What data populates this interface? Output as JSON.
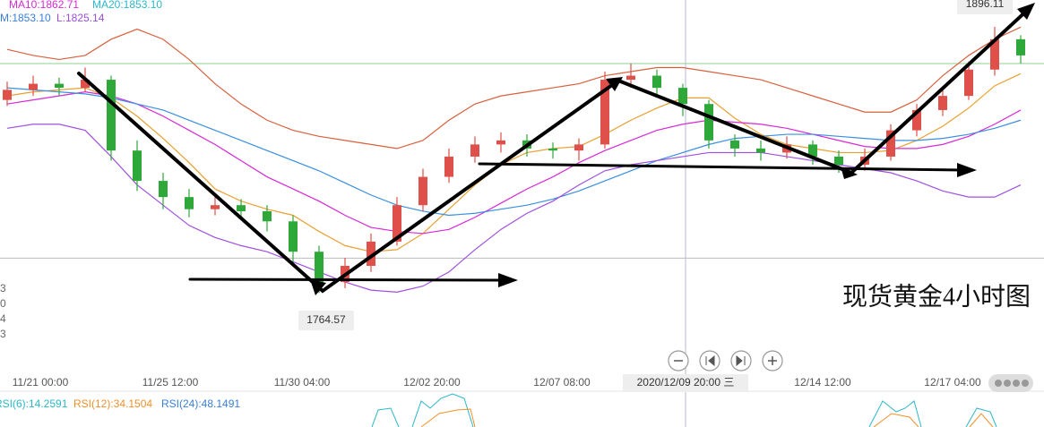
{
  "chart_data": {
    "type": "candlestick",
    "title": "现货黄金4小时图",
    "legend_texts": [
      {
        "text": "MA10:1862.71",
        "color": "#d62ad6"
      },
      {
        "text": "MA20:1853.10",
        "color": "#2ab8c8"
      },
      {
        "text": "M:1853.10",
        "color": "#3a7fd6"
      },
      {
        "text": "L:1825.14",
        "color": "#9a4fd6"
      }
    ],
    "left_fragments": [
      "3",
      "0",
      "4",
      "3"
    ],
    "high_label": "1896.11",
    "low_label": "1764.57",
    "x_labels": [
      "11/21 00:00",
      "11/25 12:00",
      "11/30 04:00",
      "12/02 20:00",
      "12/07 08:00",
      "12/14 12:00",
      "12/17 04:00"
    ],
    "crosshair_label": "2020/12/09 20:00 三",
    "rsi_labels": [
      {
        "text": "RSI(6):14.2591",
        "color": "#2ab8c8"
      },
      {
        "text": "RSI(12):34.1504",
        "color": "#f0902a"
      },
      {
        "text": "RSI(24):48.1491",
        "color": "#3a7fd6"
      }
    ],
    "ylim": [
      1728,
      1909.4
    ],
    "up_color": "#e0504a",
    "down_color": "#2fa83a",
    "hlines": [
      {
        "value": 1878,
        "color": "#8fd08f"
      },
      {
        "value": 1781.8,
        "color": "#bbbbbb"
      }
    ],
    "ohlc": [
      [
        1860,
        1869,
        1857,
        1865
      ],
      [
        1865,
        1872,
        1862,
        1868
      ],
      [
        1868,
        1871,
        1862,
        1866
      ],
      [
        1866,
        1876,
        1864,
        1870
      ],
      [
        1870,
        1872,
        1830,
        1835
      ],
      [
        1835,
        1840,
        1815,
        1820
      ],
      [
        1820,
        1824,
        1806,
        1812
      ],
      [
        1812,
        1816,
        1802,
        1806
      ],
      [
        1806,
        1812,
        1803,
        1808
      ],
      [
        1808,
        1811,
        1801,
        1805
      ],
      [
        1805,
        1808,
        1795,
        1800
      ],
      [
        1800,
        1803,
        1780,
        1785
      ],
      [
        1785,
        1788,
        1764.57,
        1770
      ],
      [
        1770,
        1782,
        1767,
        1778
      ],
      [
        1778,
        1794,
        1775,
        1790
      ],
      [
        1790,
        1812,
        1788,
        1808
      ],
      [
        1808,
        1826,
        1805,
        1822
      ],
      [
        1822,
        1836,
        1819,
        1832
      ],
      [
        1832,
        1842,
        1829,
        1838
      ],
      [
        1838,
        1844,
        1834,
        1840
      ],
      [
        1840,
        1843,
        1832,
        1836
      ],
      [
        1836,
        1839,
        1831,
        1835
      ],
      [
        1835,
        1841,
        1830,
        1838
      ],
      [
        1838,
        1874,
        1836,
        1870
      ],
      [
        1870,
        1878,
        1866,
        1872
      ],
      [
        1872,
        1875,
        1862,
        1866
      ],
      [
        1866,
        1868,
        1852,
        1858
      ],
      [
        1858,
        1860,
        1836,
        1840
      ],
      [
        1840,
        1843,
        1832,
        1836
      ],
      [
        1836,
        1840,
        1830,
        1834
      ],
      [
        1834,
        1842,
        1831,
        1838
      ],
      [
        1838,
        1840,
        1828,
        1832
      ],
      [
        1832,
        1835,
        1824,
        1828
      ],
      [
        1828,
        1836,
        1825,
        1832
      ],
      [
        1832,
        1848,
        1830,
        1845
      ],
      [
        1845,
        1858,
        1842,
        1855
      ],
      [
        1855,
        1866,
        1852,
        1862
      ],
      [
        1862,
        1879,
        1860,
        1875
      ],
      [
        1875,
        1896.11,
        1872,
        1890
      ],
      [
        1890,
        1892,
        1878,
        1882
      ]
    ],
    "lines": [
      {
        "color": "#e8a030",
        "values": [
          1862,
          1864,
          1865,
          1866,
          1861,
          1852,
          1841,
          1829,
          1816,
          1810,
          1806,
          1803,
          1795,
          1788,
          1785,
          1786,
          1794,
          1806,
          1818,
          1828,
          1834,
          1836,
          1837,
          1843,
          1850,
          1856,
          1861,
          1861,
          1851,
          1843,
          1838,
          1836,
          1834,
          1834,
          1835,
          1840,
          1847,
          1856,
          1867,
          1873
        ]
      },
      {
        "color": "#d62ad6",
        "values": [
          1858,
          1860,
          1862,
          1864,
          1862,
          1858,
          1852,
          1845,
          1838,
          1830,
          1822,
          1816,
          1810,
          1803,
          1797,
          1795,
          1794,
          1796,
          1802,
          1809,
          1816,
          1822,
          1829,
          1835,
          1840,
          1845,
          1848,
          1850,
          1849,
          1848,
          1846,
          1843,
          1840,
          1837,
          1836,
          1836,
          1838,
          1842,
          1848,
          1855
        ]
      },
      {
        "color": "#3a8fe0",
        "values": [
          1866,
          1865,
          1864,
          1863,
          1861,
          1858,
          1855,
          1850,
          1845,
          1840,
          1835,
          1830,
          1825,
          1819,
          1813,
          1808,
          1805,
          1803,
          1804,
          1806,
          1808,
          1811,
          1815,
          1820,
          1825,
          1830,
          1834,
          1838,
          1841,
          1842,
          1843,
          1843,
          1842,
          1841,
          1840,
          1840,
          1841,
          1843,
          1846,
          1850
        ]
      },
      {
        "color": "#d8603e",
        "values": [
          1885,
          1882,
          1880,
          1882,
          1890,
          1895,
          1890,
          1880,
          1868,
          1858,
          1850,
          1845,
          1842,
          1840,
          1838,
          1836,
          1840,
          1850,
          1858,
          1862,
          1864,
          1866,
          1868,
          1872,
          1874,
          1876,
          1876,
          1874,
          1872,
          1870,
          1866,
          1862,
          1858,
          1854,
          1854,
          1860,
          1872,
          1882,
          1890,
          1896
        ]
      },
      {
        "color": "#a050e0",
        "values": [
          1846,
          1848,
          1848,
          1845,
          1832,
          1818,
          1808,
          1798,
          1792,
          1788,
          1785,
          1780,
          1775,
          1770,
          1766,
          1765,
          1768,
          1775,
          1786,
          1796,
          1804,
          1810,
          1818,
          1825,
          1828,
          1830,
          1832,
          1834,
          1834,
          1834,
          1832,
          1830,
          1828,
          1826,
          1824,
          1820,
          1815,
          1812,
          1812,
          1818
        ]
      }
    ]
  }
}
